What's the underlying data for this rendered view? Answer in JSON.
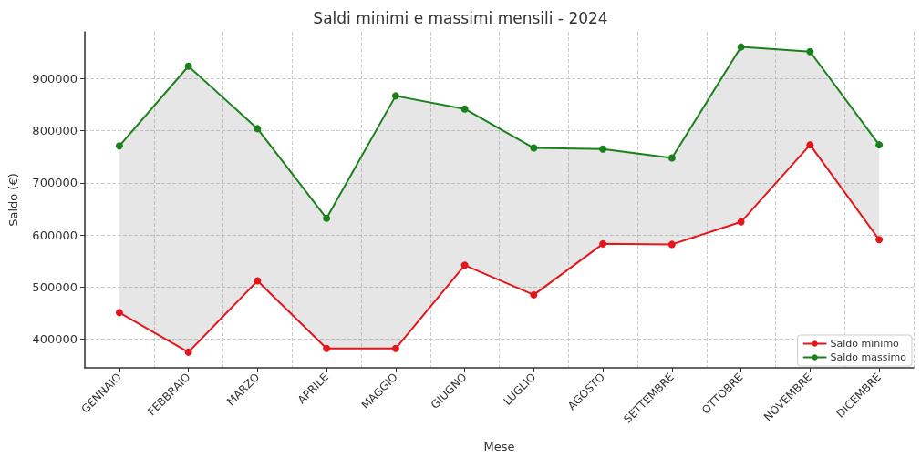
{
  "chart_data": {
    "type": "line",
    "title": "Saldi minimi e massimi mensili - 2024",
    "xlabel": "Mese",
    "ylabel": "Saldo (€)",
    "categories": [
      "GENNAIO",
      "FEBBRAIO",
      "MARZO",
      "APRILE",
      "MAGGIO",
      "GIUGNO",
      "LUGLIO",
      "AGOSTO",
      "SETTEMBRE",
      "OTTOBRE",
      "NOVEMBRE",
      "DICEMBRE"
    ],
    "series": [
      {
        "name": "Saldo minimo",
        "color": "#e3161c",
        "values": [
          451000,
          375000,
          512000,
          382000,
          382000,
          542000,
          485000,
          583000,
          582000,
          625000,
          773000,
          591000
        ]
      },
      {
        "name": "Saldo massimo",
        "color": "#1a801a",
        "values": [
          771000,
          924000,
          804000,
          632000,
          867000,
          842000,
          767000,
          765000,
          748000,
          961000,
          952000,
          773000
        ],
        "lower": [
          451000,
          375000,
          512000,
          382000,
          382000,
          542000,
          485000,
          583000,
          582000,
          625000,
          773000,
          591000
        ],
        "upper": [
          771000,
          924000,
          804000,
          632000,
          867000,
          842000,
          767000,
          765000,
          748000,
          961000,
          952000,
          773000
        ]
      }
    ],
    "ylim": [
      345000,
      990000
    ],
    "yticks": [
      400000,
      500000,
      600000,
      700000,
      800000,
      900000
    ],
    "grid": true,
    "legend": "bottom right",
    "marker": "circle",
    "line_style": "solid"
  }
}
